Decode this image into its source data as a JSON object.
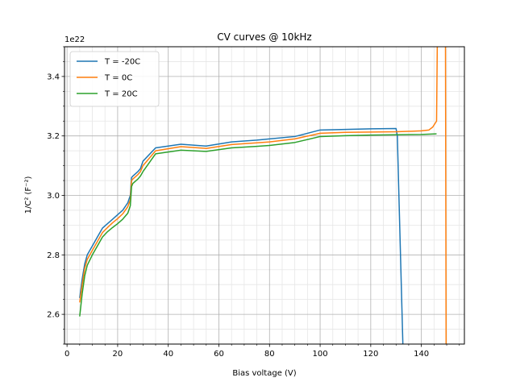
{
  "chart_data": {
    "type": "line",
    "title": "CV curves @ 10kHz",
    "xlabel": "Bias voltage (V)",
    "ylabel": "1/C² (F⁻²)",
    "y_offset_label": "1e22",
    "xlim": [
      -1,
      157
    ],
    "ylim": [
      2.5,
      3.5
    ],
    "y_multiplier": 1e+22,
    "x_ticks": [
      0,
      20,
      40,
      60,
      80,
      100,
      120,
      140
    ],
    "y_ticks": [
      2.6,
      2.8,
      3.0,
      3.2,
      3.4
    ],
    "y_tick_labels": [
      "2.6",
      "2.8",
      "3.0",
      "3.2",
      "3.4"
    ],
    "x_minor_step": 5,
    "y_minor_step": 0.05,
    "grid": true,
    "legend_position": "top-left",
    "series": [
      {
        "name": "T = -20C",
        "color": "#1f77b4",
        "x": [
          5,
          6,
          7,
          8,
          10,
          12,
          14,
          16,
          18,
          20,
          22,
          24,
          25,
          25.5,
          26,
          28,
          29,
          30,
          35,
          45,
          55,
          65,
          75,
          80,
          90,
          100,
          110,
          120,
          130,
          130.5,
          133
        ],
        "y": [
          2.655,
          2.72,
          2.77,
          2.8,
          2.83,
          2.86,
          2.89,
          2.905,
          2.92,
          2.935,
          2.95,
          2.975,
          3.0,
          3.06,
          3.065,
          3.08,
          3.09,
          3.115,
          3.16,
          3.172,
          3.166,
          3.18,
          3.186,
          3.19,
          3.198,
          3.22,
          3.222,
          3.224,
          3.225,
          3.2,
          2.4
        ]
      },
      {
        "name": "T = 0C",
        "color": "#ff7f0e",
        "x": [
          5,
          6,
          7,
          8,
          10,
          12,
          14,
          16,
          18,
          20,
          22,
          24,
          25,
          25.5,
          26,
          28,
          29,
          30,
          35,
          45,
          55,
          65,
          75,
          80,
          90,
          100,
          110,
          120,
          130,
          140,
          143,
          144.5,
          146,
          146.4,
          149.5,
          149.8
        ],
        "y": [
          2.64,
          2.7,
          2.755,
          2.785,
          2.815,
          2.845,
          2.875,
          2.892,
          2.908,
          2.922,
          2.938,
          2.962,
          2.985,
          3.05,
          3.055,
          3.07,
          3.08,
          3.1,
          3.15,
          3.164,
          3.158,
          3.171,
          3.177,
          3.18,
          3.19,
          3.209,
          3.212,
          3.213,
          3.214,
          3.217,
          3.22,
          3.23,
          3.25,
          3.6,
          3.6,
          2.4
        ]
      },
      {
        "name": "T = 20C",
        "color": "#2ca02c",
        "x": [
          5,
          6,
          7,
          8,
          10,
          12,
          14,
          16,
          18,
          20,
          22,
          24,
          25,
          25.5,
          26,
          28,
          29,
          30,
          35,
          45,
          55,
          65,
          75,
          80,
          90,
          100,
          110,
          120,
          130,
          140,
          146
        ],
        "y": [
          2.593,
          2.67,
          2.73,
          2.765,
          2.8,
          2.83,
          2.86,
          2.878,
          2.892,
          2.905,
          2.92,
          2.94,
          2.965,
          3.03,
          3.04,
          3.055,
          3.065,
          3.08,
          3.14,
          3.152,
          3.148,
          3.16,
          3.165,
          3.168,
          3.178,
          3.198,
          3.201,
          3.203,
          3.204,
          3.205,
          3.207
        ]
      }
    ]
  }
}
